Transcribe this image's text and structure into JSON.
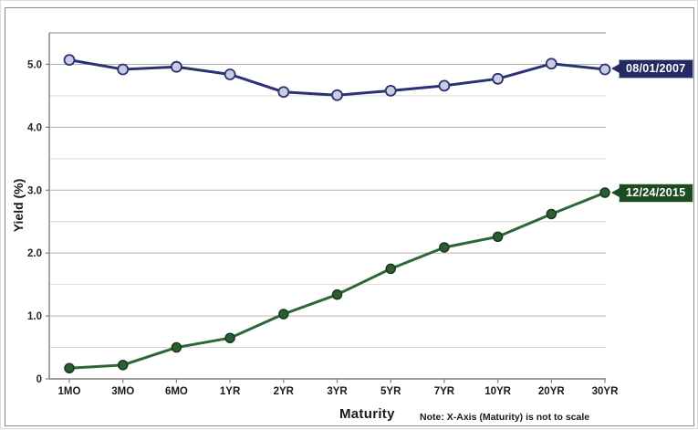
{
  "chart_data": {
    "type": "line",
    "title": "",
    "xlabel": "Maturity",
    "ylabel": "Yield (%)",
    "note": "Note: X-Axis (Maturity) is not to scale",
    "categories": [
      "1MO",
      "3MO",
      "6MO",
      "1YR",
      "2YR",
      "3YR",
      "5YR",
      "7YR",
      "10YR",
      "20YR",
      "30YR"
    ],
    "series": [
      {
        "name": "08/01/2007",
        "values": [
          5.07,
          4.92,
          4.96,
          4.84,
          4.56,
          4.51,
          4.58,
          4.66,
          4.77,
          5.01,
          4.92
        ],
        "line_color": "#2b3274",
        "marker_fill": "#c9cce3",
        "marker_stroke": "#2b3274"
      },
      {
        "name": "12/24/2015",
        "values": [
          0.17,
          0.22,
          0.5,
          0.65,
          1.03,
          1.34,
          1.75,
          2.09,
          2.26,
          2.62,
          2.96
        ],
        "line_color": "#2d6737",
        "marker_fill": "#2c5e33",
        "marker_stroke": "#16381b"
      }
    ],
    "ylim": [
      0,
      5.5
    ],
    "y_major_ticks": [
      {
        "label": "5.0",
        "value": 5
      },
      {
        "label": "4.0",
        "value": 4
      },
      {
        "label": "3.0",
        "value": 3
      },
      {
        "label": "2.0",
        "value": 2
      },
      {
        "label": "1.0",
        "value": 1
      },
      {
        "label": "0",
        "value": 0
      }
    ],
    "y_minor_values": [
      0.5,
      1.5,
      2.5,
      3.5,
      4.5
    ],
    "grid": true,
    "legend_position": "right-callouts",
    "callouts": [
      {
        "label": "08/01/2007",
        "bg": "#232b63",
        "border": "#aab0cc"
      },
      {
        "label": "12/24/2015",
        "bg": "#1c4a21",
        "border": "#cdd9cd"
      }
    ],
    "colors": {
      "major_grid": "#b2b2b2",
      "minor_grid": "#d8d8d8",
      "plot_frame": "#a0a0a0",
      "axis_line": "#7f7f7f",
      "tick_text": "#262626",
      "category_text": "#1a1a1a"
    }
  }
}
